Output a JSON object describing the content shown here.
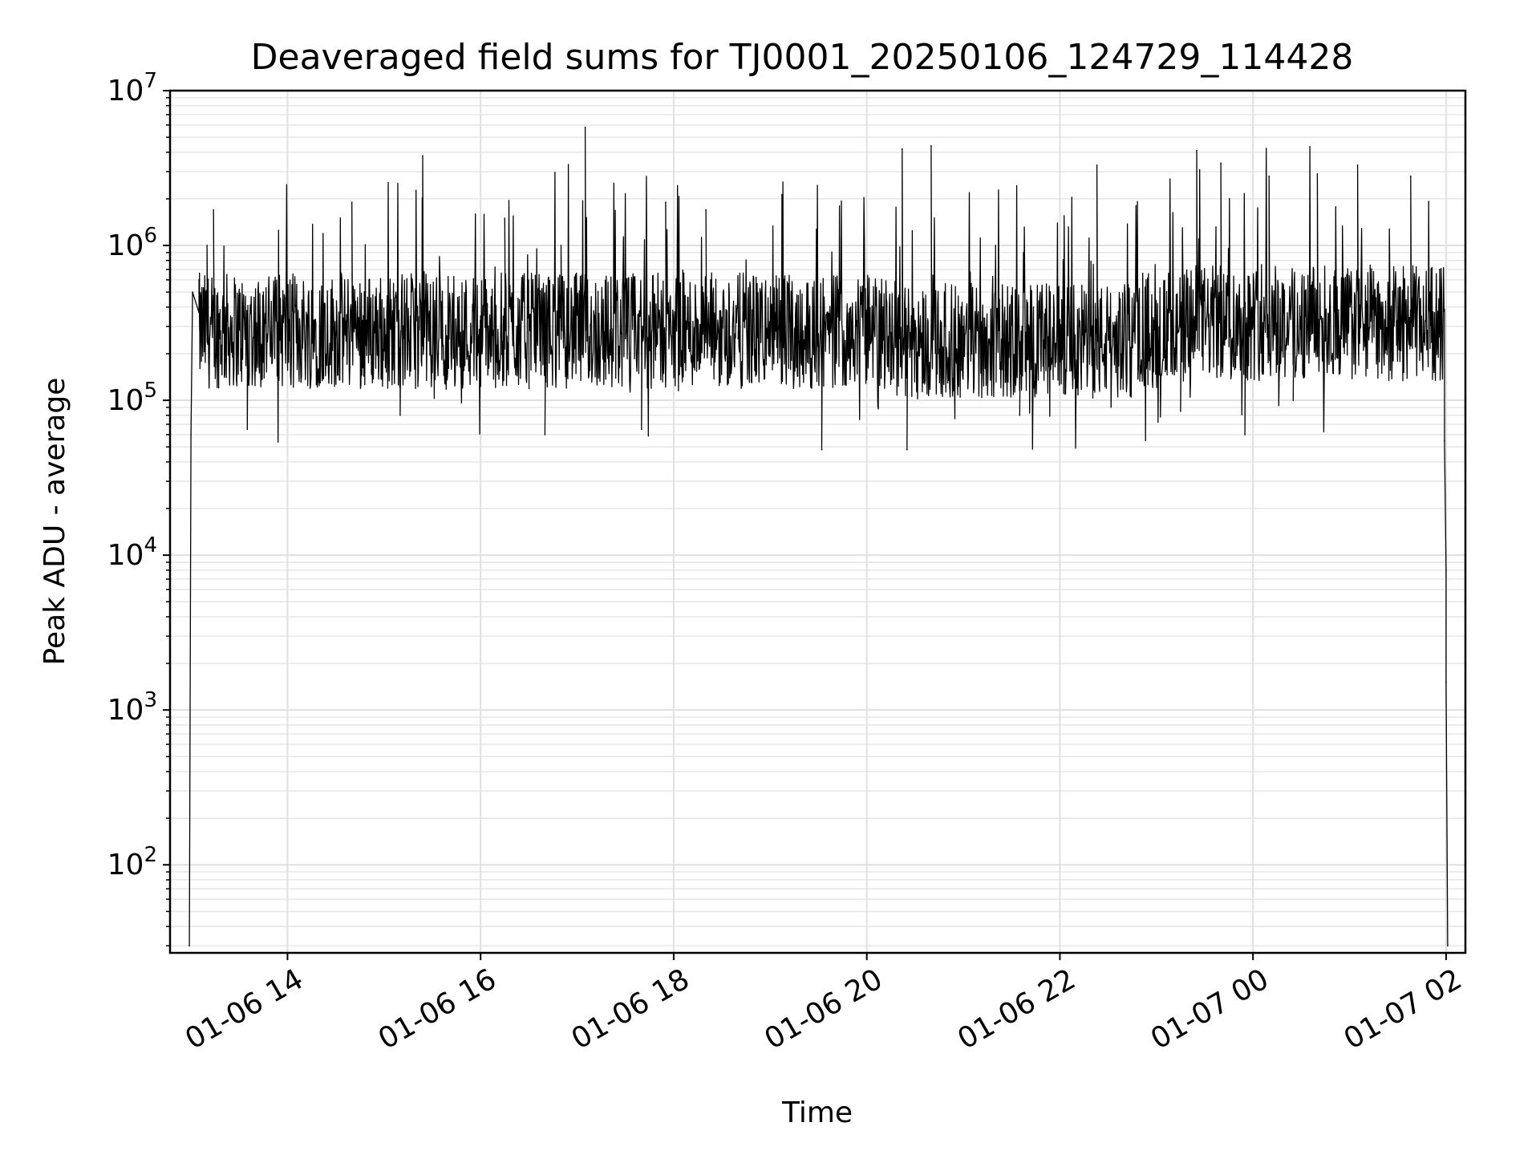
{
  "chart_data": {
    "type": "line",
    "title": "Deaveraged field sums for TJ0001_20250106_124729_114428",
    "xlabel": "Time",
    "ylabel": "Peak ADU - average",
    "yscale": "log",
    "ylim": [
      27,
      10000000
    ],
    "xlim": [
      "2025-01-06 12:47",
      "2025-01-07 02:12"
    ],
    "grid": "on (major and minor)",
    "line_color": "#000000",
    "x_ticks": [
      {
        "t": "2025-01-06 14:00",
        "label": "01-06 14"
      },
      {
        "t": "2025-01-06 16:00",
        "label": "01-06 16"
      },
      {
        "t": "2025-01-06 18:00",
        "label": "01-06 18"
      },
      {
        "t": "2025-01-06 20:00",
        "label": "01-06 20"
      },
      {
        "t": "2025-01-06 22:00",
        "label": "01-06 22"
      },
      {
        "t": "2025-01-07 00:00",
        "label": "01-07 00"
      },
      {
        "t": "2025-01-07 02:00",
        "label": "01-07 02"
      }
    ],
    "y_ticks": [
      {
        "value": 100,
        "base": "10",
        "exp": "2"
      },
      {
        "value": 1000,
        "base": "10",
        "exp": "3"
      },
      {
        "value": 10000,
        "base": "10",
        "exp": "4"
      },
      {
        "value": 100000,
        "base": "10",
        "exp": "5"
      },
      {
        "value": 1000000,
        "base": "10",
        "exp": "6"
      },
      {
        "value": 10000000,
        "base": "10",
        "exp": "7"
      }
    ],
    "series": [
      {
        "values": [
          [
            "2025-01-06 12:59",
            30
          ],
          [
            "2025-01-06 13:00",
            60000
          ],
          [
            "2025-01-06 13:01",
            500000
          ],
          [
            "2025-01-06 13:05",
            600000
          ],
          [
            "2025-01-06 13:10",
            1000000
          ],
          [
            "2025-01-06 13:14",
            1700000
          ],
          [
            "2025-01-06 13:18",
            250000
          ],
          [
            "2025-01-06 13:30",
            300000
          ],
          [
            "2025-01-06 13:35",
            65000
          ],
          [
            "2025-01-06 13:45",
            500000
          ],
          [
            "2025-01-06 14:00",
            300000
          ],
          [
            "2025-01-06 14:15",
            400000
          ],
          [
            "2025-01-06 14:30",
            250000
          ],
          [
            "2025-01-06 14:40",
            1900000
          ],
          [
            "2025-01-06 15:00",
            300000
          ],
          [
            "2025-01-06 15:10",
            80000
          ],
          [
            "2025-01-06 15:24",
            3800000
          ],
          [
            "2025-01-06 15:40",
            300000
          ],
          [
            "2025-01-06 16:00",
            350000
          ],
          [
            "2025-01-06 16:15",
            1500000
          ],
          [
            "2025-01-06 16:30",
            300000
          ],
          [
            "2025-01-06 16:40",
            60000
          ],
          [
            "2025-01-06 16:50",
            1000000
          ],
          [
            "2025-01-06 17:05",
            5800000
          ],
          [
            "2025-01-06 17:30",
            250000
          ],
          [
            "2025-01-06 17:40",
            65000
          ],
          [
            "2025-01-06 17:55",
            1900000
          ],
          [
            "2025-01-06 18:20",
            1700000
          ],
          [
            "2025-01-06 18:40",
            250000
          ],
          [
            "2025-01-06 19:00",
            200000
          ],
          [
            "2025-01-06 19:20",
            250000
          ],
          [
            "2025-01-06 19:32",
            48000
          ],
          [
            "2025-01-06 19:50",
            400000
          ],
          [
            "2025-01-06 20:10",
            300000
          ],
          [
            "2025-01-06 20:22",
            4200000
          ],
          [
            "2025-01-06 20:25",
            48000
          ],
          [
            "2025-01-06 20:40",
            4400000
          ],
          [
            "2025-01-06 21:00",
            300000
          ],
          [
            "2025-01-06 21:20",
            1000000
          ],
          [
            "2025-01-06 21:35",
            80000
          ],
          [
            "2025-01-06 22:00",
            300000
          ],
          [
            "2025-01-06 22:23",
            3300000
          ],
          [
            "2025-01-06 22:45",
            250000
          ],
          [
            "2025-01-06 23:15",
            85000
          ],
          [
            "2025-01-06 23:25",
            4100000
          ],
          [
            "2025-01-06 23:40",
            3400000
          ],
          [
            "2025-01-06 23:55",
            60000
          ],
          [
            "2025-01-07 00:10",
            2800000
          ],
          [
            "2025-01-07 00:25",
            100000
          ],
          [
            "2025-01-07 00:40",
            2900000
          ],
          [
            "2025-01-07 00:55",
            250000
          ],
          [
            "2025-01-07 01:05",
            3300000
          ],
          [
            "2025-01-07 01:20",
            150000
          ],
          [
            "2025-01-07 01:38",
            2800000
          ],
          [
            "2025-01-07 01:50",
            500000
          ],
          [
            "2025-01-07 01:56",
            700000
          ],
          [
            "2025-01-07 01:59",
            55000
          ],
          [
            "2025-01-07 02:00",
            8000
          ],
          [
            "2025-01-07 02:00",
            1500
          ],
          [
            "2025-01-07 02:01",
            30
          ]
        ]
      }
    ]
  }
}
